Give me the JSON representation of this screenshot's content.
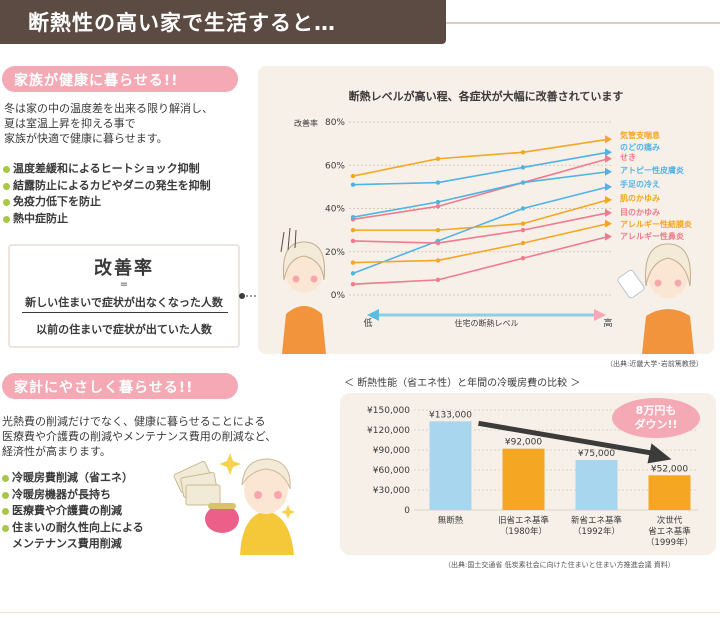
{
  "header": {
    "title": "断熱性の高い家で生活すると…"
  },
  "section1": {
    "title": "家族が健康に暮らせる!!",
    "paragraph": [
      "冬は家の中の温度差を出来る限り解消し、",
      "夏は室温上昇を抑える事で",
      "家族が快適で健康に暮らせます。"
    ],
    "bullets": [
      "温度差緩和によるヒートショック抑制",
      "結露防止によるカビやダニの発生を抑制",
      "免疫力低下を防止",
      "熱中症防止"
    ]
  },
  "formula": {
    "title": "改善率",
    "equals": "=",
    "numerator": "新しい住まいで症状が出なくなった人数",
    "denominator": "以前の住まいで症状が出ていた人数"
  },
  "section2": {
    "title": "家計にやさしく暮らせる!!",
    "paragraph": [
      "光熱費の削減だけでなく、健康に暮らせることによる",
      "医療費や介護費の削減やメンテナンス費用の削減など、",
      "経済性が高まります。"
    ],
    "bullets": [
      "冷暖房費削減（省エネ）",
      "冷暖房機器が長持ち",
      "医療費や介護費の削減",
      "住まいの耐久性向上による",
      "メンテナンス費用削減"
    ]
  },
  "chart_data": [
    {
      "type": "line",
      "title": "断熱レベルが高い程、各症状が大幅に改善されています",
      "ylabel": "改善率",
      "ylim": [
        0,
        80
      ],
      "yticks": [
        "0%",
        "20%",
        "40%",
        "60%",
        "80%"
      ],
      "x_axis": {
        "low": "低",
        "label": "住宅の断熱レベル",
        "high": "高"
      },
      "x": [
        0,
        1,
        2,
        3
      ],
      "series": [
        {
          "name": "気管支喘息",
          "values": [
            55,
            63,
            66,
            72
          ],
          "color": "#f5a623"
        },
        {
          "name": "のどの痛み",
          "values": [
            51,
            52,
            59,
            66
          ],
          "color": "#4fb3e6"
        },
        {
          "name": "せき",
          "values": [
            35,
            41,
            52,
            63
          ],
          "color": "#f07a8e"
        },
        {
          "name": "アトピー性皮膚炎",
          "values": [
            36,
            43,
            52,
            57
          ],
          "color": "#4fb3e6"
        },
        {
          "name": "手足の冷え",
          "values": [
            10,
            25,
            40,
            50
          ],
          "color": "#4fb3e6"
        },
        {
          "name": "肌のかゆみ",
          "values": [
            30,
            30,
            33,
            44
          ],
          "color": "#f5a623"
        },
        {
          "name": "目のかゆみ",
          "values": [
            25,
            24,
            30,
            38
          ],
          "color": "#f07a8e"
        },
        {
          "name": "アレルギー性結膜炎",
          "values": [
            15,
            16,
            24,
            33
          ],
          "color": "#f5a623"
        },
        {
          "name": "アレルギー性鼻炎",
          "values": [
            5,
            7,
            17,
            27
          ],
          "color": "#f07a8e"
        }
      ],
      "source": "（出典:近畿大学･岩前篤教授）"
    },
    {
      "type": "bar",
      "title": "＜ 断熱性能（省エネ性）と年間の冷暖房費の比較 ＞",
      "ylim": [
        0,
        150000
      ],
      "yticks": [
        "0",
        "¥30,000",
        "¥60,000",
        "¥90,000",
        "¥120,000",
        "¥150,000"
      ],
      "categories": [
        [
          "無断熱"
        ],
        [
          "旧省エネ基準",
          "（1980年）"
        ],
        [
          "新省エネ基準",
          "（1992年）"
        ],
        [
          "次世代",
          "省エネ基準",
          "（1999年）"
        ]
      ],
      "values": [
        133000,
        92000,
        75000,
        52000
      ],
      "value_labels": [
        "¥133,000",
        "¥92,000",
        "¥75,000",
        "¥52,000"
      ],
      "colors": [
        "#a8d6ee",
        "#f5a623",
        "#a8d6ee",
        "#f5a623"
      ],
      "callout": [
        "8万円も",
        "ダウン!!"
      ],
      "source": "（出典:国土交通省 低炭素社会に向けた住まいと住まい方推進会議 資料）"
    }
  ]
}
